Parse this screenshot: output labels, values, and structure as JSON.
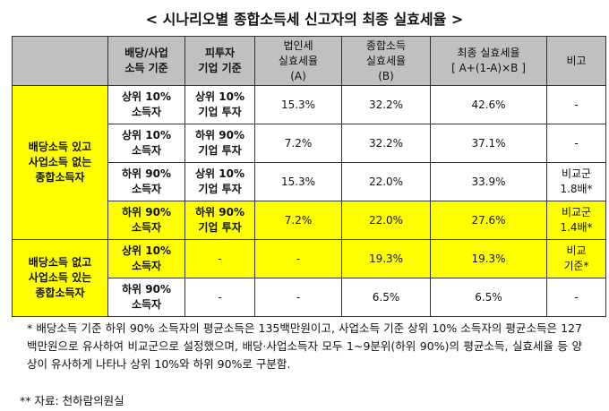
{
  "title": "< 시나리오별 종합소득세 신고자의 최종 실효세율 >",
  "headers": [
    "",
    "배당/사업\n소득 기준",
    "피투자\n기업 기준",
    "법인세\n실효세율\n(A)",
    "종합소득\n실효세율\n(B)",
    "최종 실효세율\n[ A+(1-A)×B ]",
    "비고"
  ],
  "groups": [
    "배당소득 있고\n사업소득 없는\n종합소득자",
    "배당소득 없고\n사업소득 있는\n종합소득자"
  ],
  "rows": [
    {
      "income": "상위 10%\n소득자",
      "firm": "상위 10%\n기업 투자",
      "a": "15.3%",
      "b": "32.2%",
      "final": "42.6%",
      "note": "-",
      "highlight": false
    },
    {
      "income": "상위 10%\n소득자",
      "firm": "하위 90%\n기업 투자",
      "a": "7.2%",
      "b": "32.2%",
      "final": "37.1%",
      "note": "-",
      "highlight": false
    },
    {
      "income": "하위 90%\n소득자",
      "firm": "상위 10%\n기업 투자",
      "a": "15.3%",
      "b": "22.0%",
      "final": "33.9%",
      "note": "비교군\n1.8배*",
      "highlight": false
    },
    {
      "income": "하위 90%\n소득자",
      "firm": "하위 90%\n기업 투자",
      "a": "7.2%",
      "b": "22.0%",
      "final": "27.6%",
      "note": "비교군\n1.4배*",
      "highlight": true
    },
    {
      "income": "상위 10%\n소득자",
      "firm": "-",
      "a": "-",
      "b": "19.3%",
      "final": "19.3%",
      "note": "비교\n기준*",
      "highlight": true
    },
    {
      "income": "하위 90%\n소득자",
      "firm": "-",
      "a": "-",
      "b": "6.5%",
      "final": "6.5%",
      "note": "-",
      "highlight": false
    }
  ],
  "note1": "* 배당소득 기준 하위 90% 소득자의 평균소득은 135백만원이고, 사업소득 기준 상위 10% 소득자의 평균소득은 127백만원으로 유사하여 비교군으로 설정했으며, 배당·사업소득자 모두 1~9분위(하위 90%)의 평균소득, 실효세율 등 양상이 유사하게 나타나 상위 10%와 하위 90%로 구분함.",
  "note2": "** 자료: 천하람의원실",
  "colors": {
    "highlight": "#ffff00",
    "header": "#c0c0c0"
  }
}
